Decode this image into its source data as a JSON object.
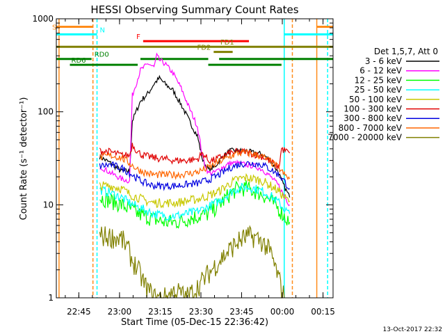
{
  "chart_data": {
    "type": "line",
    "title": "HESSI Observing Summary Count Rates",
    "xlabel": "Start Time (05-Dec-15 22:36:42)",
    "ylabel": "Count Rate (s⁻¹ detector⁻¹)",
    "x_unit": "minutes after 22:36:42",
    "xlim": [
      0,
      102
    ],
    "x_ticks": [
      {
        "at": 8.3,
        "label": "22:45"
      },
      {
        "at": 23.3,
        "label": "23:00"
      },
      {
        "at": 38.3,
        "label": "23:15"
      },
      {
        "at": 53.3,
        "label": "23:30"
      },
      {
        "at": 68.3,
        "label": "23:45"
      },
      {
        "at": 83.3,
        "label": "00:00"
      },
      {
        "at": 98.3,
        "label": "00:15"
      }
    ],
    "y_scale": "log",
    "ylim": [
      1,
      1000
    ],
    "y_ticks": [
      {
        "at": 1,
        "label": "1"
      },
      {
        "at": 10,
        "label": "10"
      },
      {
        "at": 100,
        "label": "100"
      },
      {
        "at": 1000,
        "label": "1000"
      }
    ],
    "legend_title": "Det 1,5,7, Att 0",
    "legend_position": "right",
    "series": [
      {
        "name": "3 - 6 keV",
        "color": "#000000",
        "points": [
          [
            16,
            33
          ],
          [
            20,
            28
          ],
          [
            24,
            23
          ],
          [
            27,
            23
          ],
          [
            28,
            80
          ],
          [
            31,
            130
          ],
          [
            34,
            160
          ],
          [
            36,
            200
          ],
          [
            38,
            230
          ],
          [
            40,
            200
          ],
          [
            43,
            170
          ],
          [
            46,
            120
          ],
          [
            49,
            80
          ],
          [
            52,
            55
          ],
          [
            54,
            30
          ],
          [
            56,
            24
          ],
          [
            58,
            25
          ],
          [
            61,
            32
          ],
          [
            64,
            38
          ],
          [
            67,
            38
          ],
          [
            70,
            38
          ],
          [
            73,
            36
          ],
          [
            76,
            35
          ],
          [
            79,
            30
          ],
          [
            82,
            22
          ],
          [
            83,
            18
          ],
          [
            86,
            12
          ]
        ]
      },
      {
        "name": "6 - 12 keV",
        "color": "#ff00ff",
        "points": [
          [
            16,
            26
          ],
          [
            20,
            22
          ],
          [
            24,
            19
          ],
          [
            27,
            18
          ],
          [
            28,
            150
          ],
          [
            31,
            280
          ],
          [
            34,
            330
          ],
          [
            36,
            300
          ],
          [
            37,
            400
          ],
          [
            38,
            360
          ],
          [
            40,
            330
          ],
          [
            43,
            260
          ],
          [
            46,
            180
          ],
          [
            49,
            110
          ],
          [
            52,
            70
          ],
          [
            54,
            32
          ],
          [
            56,
            22
          ],
          [
            58,
            22
          ],
          [
            61,
            25
          ],
          [
            64,
            28
          ],
          [
            67,
            28
          ],
          [
            70,
            27
          ],
          [
            73,
            26
          ],
          [
            76,
            24
          ],
          [
            79,
            20
          ],
          [
            82,
            16
          ],
          [
            83,
            14
          ],
          [
            86,
            10
          ]
        ]
      },
      {
        "name": "12 - 25 keV",
        "color": "#00ff00",
        "points": [
          [
            16,
            12
          ],
          [
            20,
            11
          ],
          [
            24,
            10
          ],
          [
            27,
            9
          ],
          [
            30,
            8
          ],
          [
            33,
            7.5
          ],
          [
            36,
            7
          ],
          [
            40,
            6.5
          ],
          [
            44,
            6.5
          ],
          [
            48,
            7
          ],
          [
            52,
            7.5
          ],
          [
            56,
            8
          ],
          [
            60,
            10
          ],
          [
            64,
            13
          ],
          [
            67,
            15
          ],
          [
            70,
            15
          ],
          [
            73,
            14
          ],
          [
            76,
            13
          ],
          [
            79,
            11
          ],
          [
            82,
            9
          ],
          [
            84,
            7.5
          ],
          [
            86,
            6.5
          ]
        ]
      },
      {
        "name": "25 - 50 keV",
        "color": "#00ffff",
        "points": [
          [
            16,
            14.5
          ],
          [
            20,
            13.5
          ],
          [
            24,
            12
          ],
          [
            27,
            10.5
          ],
          [
            30,
            9.5
          ],
          [
            33,
            8.7
          ],
          [
            36,
            8
          ],
          [
            40,
            7.6
          ],
          [
            44,
            7.6
          ],
          [
            48,
            8
          ],
          [
            52,
            8.5
          ],
          [
            56,
            9.5
          ],
          [
            60,
            11
          ],
          [
            64,
            13.5
          ],
          [
            67,
            15
          ],
          [
            70,
            15.5
          ],
          [
            73,
            15
          ],
          [
            76,
            14
          ],
          [
            79,
            12.5
          ],
          [
            82,
            10.5
          ],
          [
            84,
            9
          ],
          [
            86,
            8
          ]
        ]
      },
      {
        "name": "50 - 100 keV",
        "color": "#c8c800",
        "points": [
          [
            16,
            16
          ],
          [
            20,
            16
          ],
          [
            24,
            15
          ],
          [
            27,
            13
          ],
          [
            30,
            12
          ],
          [
            33,
            11
          ],
          [
            36,
            10.5
          ],
          [
            40,
            10.5
          ],
          [
            44,
            10.5
          ],
          [
            48,
            11
          ],
          [
            52,
            11.5
          ],
          [
            56,
            12.5
          ],
          [
            60,
            14
          ],
          [
            64,
            17
          ],
          [
            67,
            19
          ],
          [
            70,
            19.5
          ],
          [
            73,
            19
          ],
          [
            76,
            18
          ],
          [
            79,
            16
          ],
          [
            82,
            14
          ],
          [
            84,
            12
          ],
          [
            86,
            11
          ]
        ]
      },
      {
        "name": "100 - 300 keV",
        "color": "#e00000",
        "points": [
          [
            16,
            38
          ],
          [
            20,
            37
          ],
          [
            24,
            34
          ],
          [
            27,
            34
          ],
          [
            28,
            45
          ],
          [
            30,
            37
          ],
          [
            32,
            34
          ],
          [
            36,
            32
          ],
          [
            40,
            31
          ],
          [
            44,
            30
          ],
          [
            48,
            30
          ],
          [
            52,
            31
          ],
          [
            54,
            36
          ],
          [
            56,
            30
          ],
          [
            58,
            30
          ],
          [
            61,
            33
          ],
          [
            64,
            36
          ],
          [
            67,
            37
          ],
          [
            70,
            37
          ],
          [
            73,
            35
          ],
          [
            76,
            33
          ],
          [
            79,
            29
          ],
          [
            82,
            25
          ],
          [
            83,
            40
          ],
          [
            86,
            36
          ]
        ]
      },
      {
        "name": "300 - 800 keV",
        "color": "#0000e0",
        "points": [
          [
            16,
            26
          ],
          [
            20,
            27
          ],
          [
            24,
            25
          ],
          [
            27,
            22
          ],
          [
            30,
            19
          ],
          [
            33,
            17
          ],
          [
            36,
            16
          ],
          [
            40,
            16
          ],
          [
            44,
            16
          ],
          [
            48,
            16.5
          ],
          [
            52,
            17
          ],
          [
            56,
            18.5
          ],
          [
            60,
            21
          ],
          [
            64,
            25
          ],
          [
            67,
            27
          ],
          [
            70,
            28
          ],
          [
            73,
            28
          ],
          [
            76,
            27
          ],
          [
            79,
            24
          ],
          [
            82,
            21
          ],
          [
            84,
            18
          ],
          [
            86,
            15
          ]
        ]
      },
      {
        "name": "800 - 7000 keV",
        "color": "#ff6600",
        "points": [
          [
            16,
            32
          ],
          [
            20,
            34
          ],
          [
            24,
            32
          ],
          [
            27,
            28
          ],
          [
            30,
            24
          ],
          [
            33,
            22
          ],
          [
            36,
            21
          ],
          [
            40,
            21
          ],
          [
            44,
            21
          ],
          [
            48,
            21.5
          ],
          [
            52,
            22.5
          ],
          [
            56,
            25
          ],
          [
            60,
            29
          ],
          [
            64,
            33
          ],
          [
            67,
            36
          ],
          [
            70,
            36
          ],
          [
            73,
            35
          ],
          [
            76,
            33
          ],
          [
            79,
            29
          ],
          [
            82,
            25
          ],
          [
            84,
            21
          ],
          [
            86,
            19
          ]
        ]
      },
      {
        "name": "7000 - 20000 keV",
        "color": "#808000",
        "points": [
          [
            16,
            4.6
          ],
          [
            20,
            4.5
          ],
          [
            24,
            4.3
          ],
          [
            26,
            3.5
          ],
          [
            28,
            2.5
          ],
          [
            30,
            2
          ],
          [
            33,
            1.3
          ],
          [
            36,
            1
          ],
          [
            40,
            1
          ],
          [
            44,
            1.2
          ],
          [
            48,
            1
          ],
          [
            52,
            1.3
          ],
          [
            56,
            1.8
          ],
          [
            60,
            2.5
          ],
          [
            64,
            3.3
          ],
          [
            67,
            4
          ],
          [
            70,
            4.5
          ],
          [
            73,
            4.5
          ],
          [
            76,
            4
          ],
          [
            79,
            3
          ],
          [
            82,
            1.6
          ],
          [
            84,
            1
          ]
        ]
      }
    ],
    "flag_bars": [
      {
        "label": "SAA",
        "visible_label": "S",
        "color": "#ff8c1a",
        "y": 820,
        "segments": [
          [
            0,
            13.5
          ],
          [
            96,
            102
          ]
        ]
      },
      {
        "label": "N",
        "visible_label": "N",
        "color": "#00ffff",
        "y": 680,
        "segments": [
          [
            0,
            15
          ],
          [
            84,
            102
          ]
        ]
      },
      {
        "label": "F",
        "visible_label": "F",
        "color": "#ff0000",
        "y": 575,
        "segments": [
          [
            32,
            71
          ]
        ]
      },
      {
        "label": "FD1",
        "visible_label": "FD1",
        "color": "#808000",
        "y": 500,
        "segments": [
          [
            0,
            102
          ]
        ]
      },
      {
        "label": "FD2",
        "visible_label": "FD2",
        "color": "#808000",
        "y": 440,
        "segments": [
          [
            58,
            65
          ]
        ]
      },
      {
        "label": "RD0",
        "visible_label": "RD0",
        "color": "#008000",
        "y": 370,
        "segments": [
          [
            0,
            13
          ],
          [
            31,
            56
          ],
          [
            60,
            102
          ]
        ]
      },
      {
        "label": "RD6",
        "visible_label": "RD6",
        "color": "#008000",
        "y": 320,
        "segments": [
          [
            5,
            30
          ],
          [
            56,
            83
          ]
        ]
      }
    ],
    "vertical_markers": [
      {
        "x": 1,
        "color": "#ff8c1a",
        "style": "solid"
      },
      {
        "x": 13.5,
        "color": "#ff8c1a",
        "style": "dashed"
      },
      {
        "x": 15,
        "color": "#00ffff",
        "style": "dashed"
      },
      {
        "x": 84,
        "color": "#00ffff",
        "style": "solid"
      },
      {
        "x": 87,
        "color": "#ff8c1a",
        "style": "dashed"
      },
      {
        "x": 96,
        "color": "#ff8c1a",
        "style": "solid"
      },
      {
        "x": 100,
        "color": "#00ffff",
        "style": "dashed"
      }
    ],
    "footer_date": "13-Oct-2017 22:32"
  }
}
